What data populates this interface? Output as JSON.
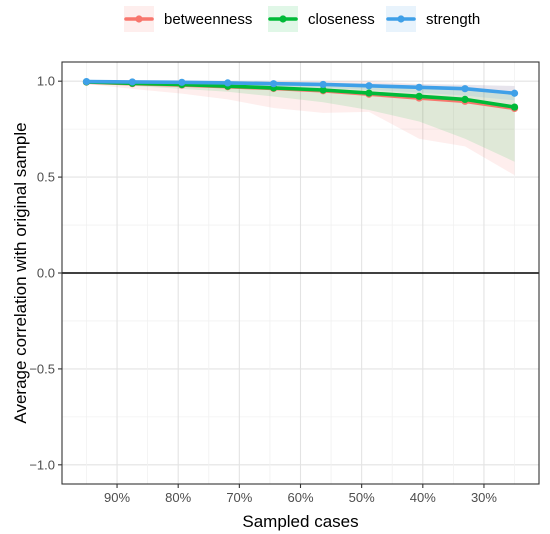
{
  "chart_data": {
    "type": "line",
    "xlabel": "Sampled cases",
    "ylabel": "Average correlation with original sample",
    "x": [
      95,
      87.5,
      79.4,
      71.9,
      64.4,
      56.3,
      48.8,
      40.6,
      33.1,
      25
    ],
    "x_ticks": [
      90,
      80,
      70,
      60,
      50,
      40,
      30
    ],
    "x_tick_labels": [
      "90%",
      "80%",
      "70%",
      "60%",
      "50%",
      "40%",
      "30%"
    ],
    "xlim": [
      99,
      21
    ],
    "ylim": [
      -1.1,
      1.1
    ],
    "y_ticks": [
      -1.0,
      -0.5,
      0.0,
      0.5,
      1.0
    ],
    "y_tick_labels": [
      "−1.0",
      "−0.5",
      "0.0",
      "0.5",
      "1.0"
    ],
    "reference_line_y": 0,
    "grid": true,
    "legend_position": "top",
    "series": [
      {
        "name": "betweenness",
        "color": "#F8766D",
        "values": [
          0.995,
          0.987,
          0.98,
          0.971,
          0.962,
          0.95,
          0.932,
          0.912,
          0.895,
          0.858
        ],
        "band_lower": [
          0.985,
          0.96,
          0.935,
          0.905,
          0.86,
          0.835,
          0.84,
          0.7,
          0.66,
          0.51
        ],
        "band_upper": [
          1.0,
          1.0,
          1.0,
          1.0,
          1.0,
          1.0,
          1.0,
          0.985,
          0.98,
          0.975
        ]
      },
      {
        "name": "closeness",
        "color": "#00BA38",
        "values": [
          0.996,
          0.989,
          0.982,
          0.974,
          0.965,
          0.954,
          0.938,
          0.921,
          0.905,
          0.865
        ],
        "band_lower": [
          0.99,
          0.975,
          0.96,
          0.945,
          0.92,
          0.89,
          0.85,
          0.79,
          0.7,
          0.58
        ],
        "band_upper": [
          1.0,
          0.998,
          0.995,
          0.99,
          0.985,
          0.98,
          0.972,
          0.965,
          0.955,
          0.94
        ]
      },
      {
        "name": "strength",
        "color": "#3FA0E8",
        "values": [
          0.998,
          0.996,
          0.994,
          0.991,
          0.987,
          0.983,
          0.976,
          0.968,
          0.961,
          0.937
        ],
        "band_lower": [
          0.995,
          0.99,
          0.985,
          0.98,
          0.972,
          0.965,
          0.955,
          0.94,
          0.925,
          0.9
        ],
        "band_upper": [
          1.0,
          1.0,
          1.0,
          0.998,
          0.996,
          0.994,
          0.99,
          0.985,
          0.982,
          0.975
        ]
      }
    ]
  }
}
